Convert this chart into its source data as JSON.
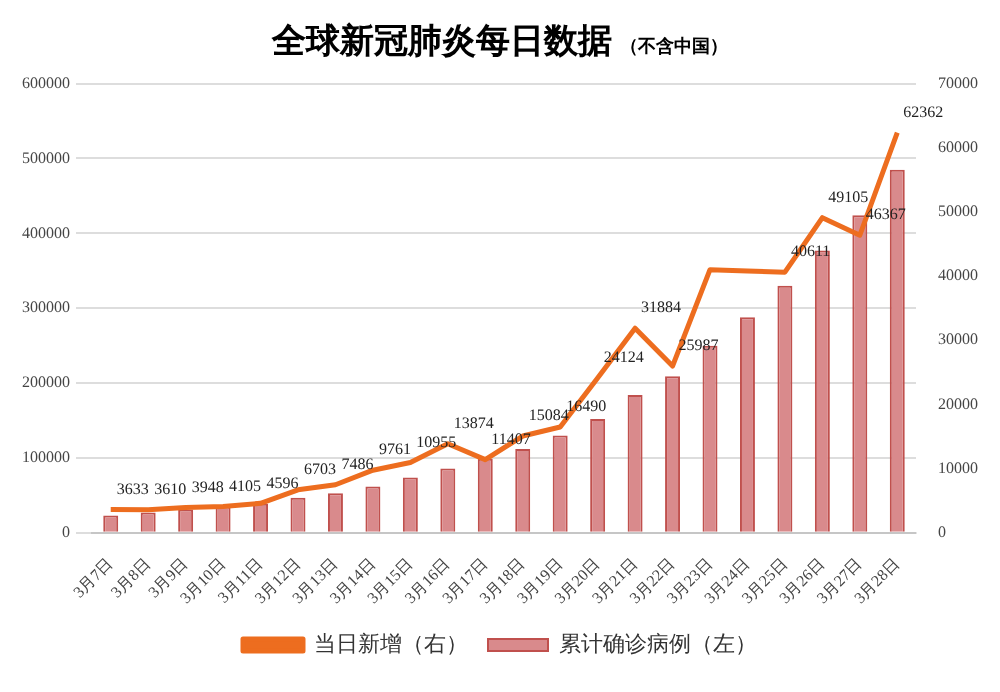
{
  "chart_data": {
    "type": "bar",
    "title": "全球新冠肺炎每日数据",
    "subtitle": "（不含中国）",
    "categories": [
      "3月7日",
      "3月8日",
      "3月9日",
      "3月10日",
      "3月11日",
      "3月12日",
      "3月13日",
      "3月14日",
      "3月15日",
      "3月16日",
      "3月17日",
      "3月18日",
      "3月19日",
      "3月20日",
      "3月21日",
      "3月22日",
      "3月23日",
      "3月24日",
      "3月25日",
      "3月26日",
      "3月27日",
      "3月28日"
    ],
    "series": [
      {
        "name": "累计确诊病例（左）",
        "color": "#d98a8c",
        "values": [
          23000,
          27000,
          31000,
          35000,
          39000,
          47000,
          53000,
          62000,
          74000,
          86000,
          99000,
          112000,
          130000,
          152000,
          184000,
          209000,
          250000,
          288000,
          330000,
          377000,
          424000,
          485000
        ]
      },
      {
        "name": "当日新增（右）",
        "type": "line",
        "axis": "y2",
        "color": "#ed6d1f",
        "values": [
          3633,
          3610,
          3948,
          4105,
          4596,
          6703,
          7486,
          9761,
          10955,
          13874,
          11407,
          15084,
          16490,
          24124,
          31884,
          25987,
          41000,
          40800,
          40611,
          49105,
          46367,
          62362
        ],
        "value_labels": [
          "3633",
          "3610",
          "3948",
          "4105",
          "4596",
          "6703",
          "7486",
          "9761",
          "10955",
          "13874",
          "11407",
          "15084",
          "16490",
          "24124",
          "31884",
          "25987",
          null,
          null,
          "40611",
          "49105",
          "46367",
          "62362"
        ]
      }
    ],
    "ylim": [
      0,
      600000
    ],
    "yticks": [
      0,
      100000,
      200000,
      300000,
      400000,
      500000,
      600000
    ],
    "y2lim": [
      0,
      70000
    ],
    "y2ticks": [
      0,
      10000,
      20000,
      30000,
      40000,
      50000,
      60000,
      70000
    ],
    "grid": "y",
    "legend": "bottom",
    "marker": "none"
  }
}
